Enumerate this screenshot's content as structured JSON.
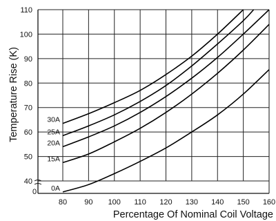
{
  "chart_data": {
    "type": "line",
    "title": "",
    "xlabel": "Percentage Of Nominal Coil Voltage",
    "ylabel": "Temperature Rise (K)",
    "xlim": [
      80,
      160
    ],
    "ylim": [
      40,
      110
    ],
    "origin_label": "0",
    "xticks": [
      80,
      90,
      100,
      110,
      120,
      130,
      140,
      150,
      160
    ],
    "yticks": [
      40,
      50,
      60,
      70,
      80,
      90,
      100,
      110
    ],
    "grid": true,
    "series": [
      {
        "name": "30A",
        "x": [
          80,
          90,
          100,
          110,
          120,
          130,
          140,
          150
        ],
        "y": [
          63.5,
          67.5,
          72,
          77,
          83.5,
          91,
          100,
          110
        ]
      },
      {
        "name": "25A",
        "x": [
          80,
          90,
          100,
          110,
          120,
          130,
          140,
          150,
          154
        ],
        "y": [
          58.5,
          62.5,
          67,
          72.5,
          79,
          87,
          96,
          105.5,
          110
        ]
      },
      {
        "name": "20A",
        "x": [
          80,
          90,
          100,
          110,
          120,
          130,
          140,
          150,
          160
        ],
        "y": [
          54,
          58,
          62.5,
          68,
          74.5,
          82,
          90.5,
          100,
          110
        ]
      },
      {
        "name": "15A",
        "x": [
          80,
          90,
          100,
          110,
          120,
          130,
          140,
          150,
          160
        ],
        "y": [
          47.5,
          51,
          56,
          61.5,
          68,
          75.5,
          84,
          93.5,
          104
        ]
      },
      {
        "name": "0A",
        "x": [
          80,
          90,
          100,
          110,
          120,
          130,
          140,
          150,
          160
        ],
        "y": [
          35.5,
          38.5,
          43,
          48,
          53.5,
          60,
          67,
          75.5,
          85.5
        ]
      }
    ]
  }
}
